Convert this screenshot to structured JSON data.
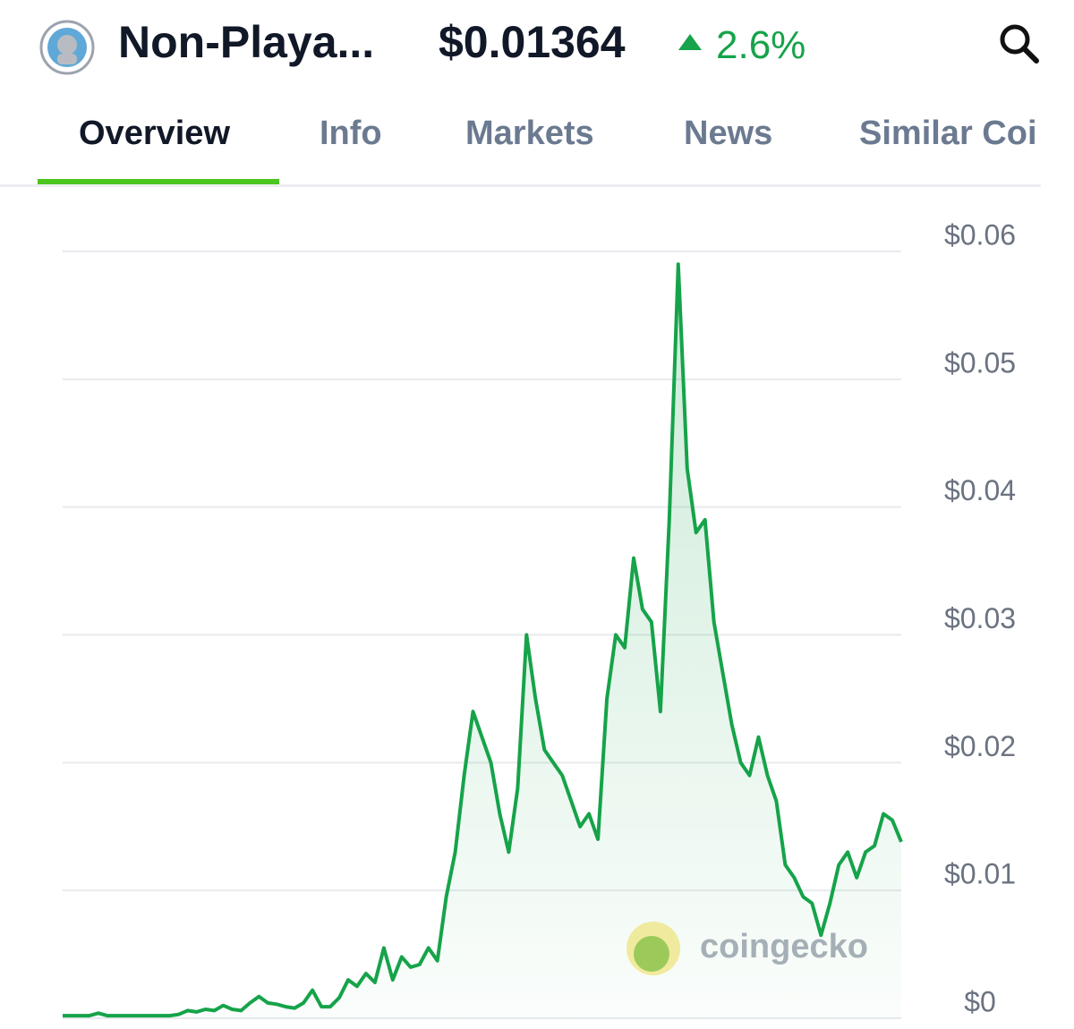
{
  "header": {
    "coin_name": "Non-Playa...",
    "price": "$0.01364",
    "change": "2.6%"
  },
  "tabs": [
    "Overview",
    "Info",
    "Markets",
    "News",
    "Similar Coi"
  ],
  "watermark": "coingecko",
  "chart_data": {
    "type": "line",
    "color": "#16a34a",
    "values": [
      0.0002,
      0.0002,
      0.0002,
      0.0002,
      0.0004,
      0.0002,
      0.0002,
      0.0002,
      0.0002,
      0.0002,
      0.0002,
      0.0002,
      0.0002,
      0.0003,
      0.0006,
      0.0005,
      0.0007,
      0.0006,
      0.001,
      0.0007,
      0.0006,
      0.0012,
      0.0017,
      0.0012,
      0.0011,
      0.0009,
      0.0008,
      0.0012,
      0.0022,
      0.0009,
      0.0009,
      0.0016,
      0.003,
      0.0025,
      0.0035,
      0.0028,
      0.0055,
      0.003,
      0.0048,
      0.004,
      0.0042,
      0.0055,
      0.0045,
      0.0095,
      0.013,
      0.019,
      0.024,
      0.022,
      0.02,
      0.016,
      0.013,
      0.018,
      0.03,
      0.025,
      0.021,
      0.02,
      0.019,
      0.017,
      0.015,
      0.016,
      0.014,
      0.025,
      0.03,
      0.029,
      0.036,
      0.032,
      0.031,
      0.024,
      0.039,
      0.059,
      0.043,
      0.038,
      0.039,
      0.031,
      0.027,
      0.023,
      0.02,
      0.019,
      0.022,
      0.019,
      0.017,
      0.012,
      0.011,
      0.0095,
      0.009,
      0.0065,
      0.009,
      0.012,
      0.013,
      0.011,
      0.013,
      0.0135,
      0.016,
      0.0155,
      0.0138
    ],
    "ylim": [
      0,
      0.06
    ],
    "yticks": [
      {
        "value": 0.06,
        "label": "$0.06"
      },
      {
        "value": 0.05,
        "label": "$0.05"
      },
      {
        "value": 0.04,
        "label": "$0.04"
      },
      {
        "value": 0.03,
        "label": "$0.03"
      },
      {
        "value": 0.02,
        "label": "$0.02"
      },
      {
        "value": 0.01,
        "label": "$0.01"
      },
      {
        "value": 0,
        "label": "$0"
      }
    ],
    "grid": true
  }
}
